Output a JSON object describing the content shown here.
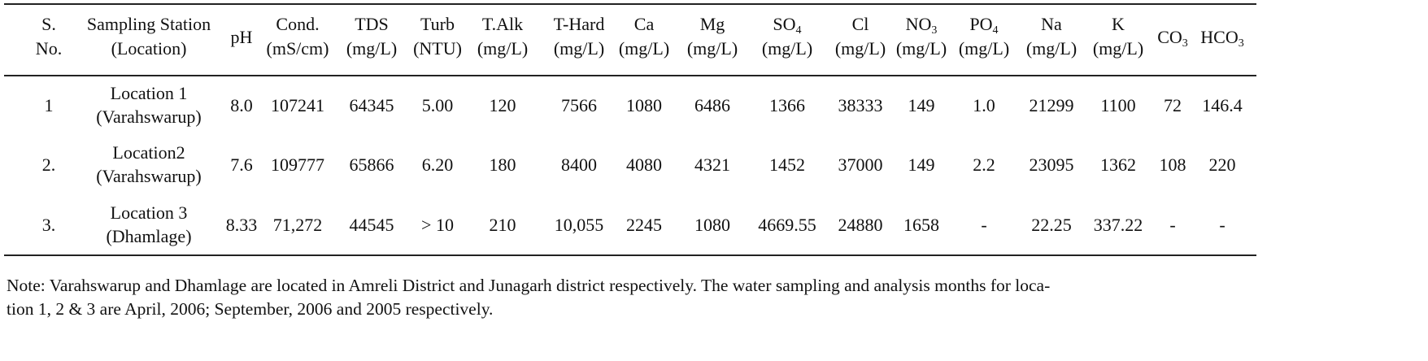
{
  "table": {
    "header": [
      {
        "text": "S.",
        "line2": "No."
      },
      {
        "text": "Sampling Station",
        "line2": "(Location)"
      },
      {
        "text": "pH"
      },
      {
        "text": "Cond.",
        "line2": "(mS/cm)"
      },
      {
        "text": "TDS",
        "line2": "(mg/L)"
      },
      {
        "text": "Turb",
        "line2": "(NTU)"
      },
      {
        "text": "T.Alk",
        "line2": "(mg/L)"
      },
      {
        "text": "T-Hard",
        "line2": "(mg/L)"
      },
      {
        "text": "Ca",
        "line2": "(mg/L)"
      },
      {
        "text": "Mg",
        "line2": "(mg/L)"
      },
      {
        "text": "SO",
        "sub": "4",
        "line2": "(mg/L)"
      },
      {
        "text": "Cl",
        "line2": "(mg/L)"
      },
      {
        "text": "NO",
        "sub": "3",
        "line2": "(mg/L)"
      },
      {
        "text": "PO",
        "sub": "4",
        "line2": "(mg/L)"
      },
      {
        "text": "Na",
        "line2": "(mg/L)"
      },
      {
        "text": "K",
        "line2": "(mg/L)"
      },
      {
        "text": "CO",
        "sub": "3"
      },
      {
        "text": "HCO",
        "sub": "3"
      }
    ],
    "rows": [
      [
        "1",
        [
          "Location 1",
          "(Varahswarup)"
        ],
        "8.0",
        "107241",
        "64345",
        "5.00",
        "120",
        "7566",
        "1080",
        "6486",
        "1366",
        "38333",
        "149",
        "1.0",
        "21299",
        "1100",
        "72",
        "146.4"
      ],
      [
        "2.",
        [
          "Location2",
          "(Varahswarup)"
        ],
        "7.6",
        "109777",
        "65866",
        "6.20",
        "180",
        "8400",
        "4080",
        "4321",
        "1452",
        "37000",
        "149",
        "2.2",
        "23095",
        "1362",
        "108",
        "220"
      ],
      [
        "3.",
        [
          "Location 3",
          "(Dhamlage)"
        ],
        "8.33",
        "71,272",
        "44545",
        "> 10",
        "210",
        "10,055",
        "2245",
        "1080",
        "4669.55",
        "24880",
        "1658",
        "-",
        "22.25",
        "337.22",
        "-",
        "-"
      ]
    ]
  },
  "note": [
    "Note: Varahswarup and Dhamlage are located in Amreli District and Junagarh district respectively. The water sampling and analysis months for loca-",
    "tion 1, 2 & 3 are April, 2006; September, 2006 and 2005 respectively."
  ]
}
